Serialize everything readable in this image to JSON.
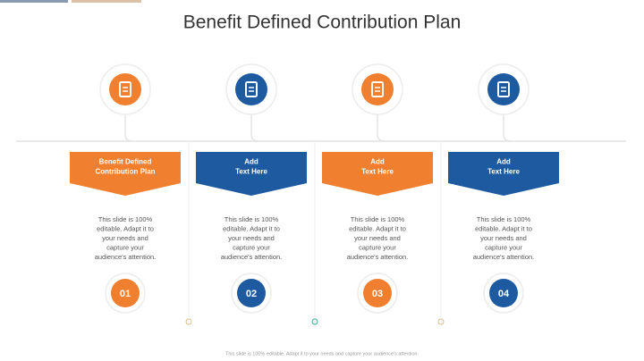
{
  "title": "Benefit Defined Contribution Plan",
  "columns": [
    {
      "label": [
        "Benefit Defined",
        "Contribution Plan"
      ],
      "body": [
        "This slide is 100%",
        "editable. Adapt it to",
        "your needs and",
        "capture your",
        "audience's attention."
      ],
      "number": "01",
      "color": "#f07f2f"
    },
    {
      "label": [
        "Add",
        "Text Here"
      ],
      "body": [
        "This slide is 100%",
        "editable. Adapt it to",
        "your needs and",
        "capture your",
        "audience's attention."
      ],
      "number": "02",
      "color": "#1d5aa0"
    },
    {
      "label": [
        "Add",
        "Text Here"
      ],
      "body": [
        "This slide is 100%",
        "editable. Adapt it to",
        "your needs and",
        "capture your",
        "audience's attention."
      ],
      "number": "03",
      "color": "#f07f2f"
    },
    {
      "label": [
        "Add",
        "Text Here"
      ],
      "body": [
        "This slide is 100%",
        "editable. Adapt it to",
        "your needs and",
        "capture your",
        "audience's attention."
      ],
      "number": "04",
      "color": "#1d5aa0"
    }
  ],
  "footer": "This slide is 100% editable. Adapt it to your needs and capture your audience's attention."
}
